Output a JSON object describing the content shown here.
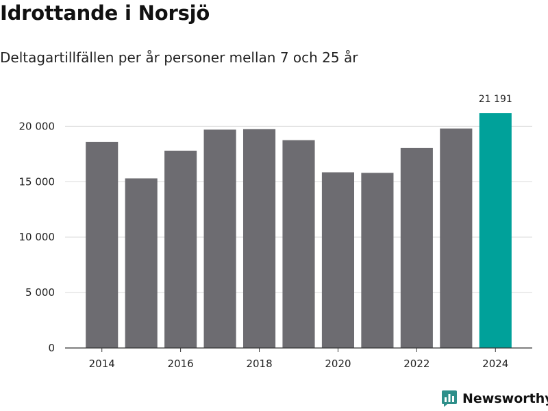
{
  "colors": {
    "bar": "#6d6c71",
    "highlight": "#00a19a",
    "grid": "#d9d9d9",
    "axis": "#333333",
    "brand": "#2e8f8a"
  },
  "chart_data": {
    "type": "bar",
    "title": "Idrottande i Norsjö",
    "subtitle": "Deltagartillfällen per år personer mellan 7 och 25 år",
    "categories": [
      "2014",
      "2015",
      "2016",
      "2017",
      "2018",
      "2019",
      "2020",
      "2021",
      "2022",
      "2023",
      "2024"
    ],
    "values": [
      18600,
      15300,
      17800,
      19700,
      19750,
      18750,
      15850,
      15800,
      18050,
      19800,
      21191
    ],
    "highlight_index": 10,
    "data_labels": [
      {
        "index": 10,
        "text": "21 191"
      }
    ],
    "ylim": [
      0,
      22000
    ],
    "yticks": [
      0,
      5000,
      10000,
      15000,
      20000
    ],
    "ytick_labels": [
      "0",
      "5 000",
      "10 000",
      "15 000",
      "20 000"
    ],
    "xtick_labels": [
      "2014",
      "2016",
      "2018",
      "2020",
      "2022",
      "2024"
    ],
    "xlabel": "",
    "ylabel": "",
    "grid": true,
    "legend": "none"
  },
  "brand": {
    "name": "Newsworthy",
    "logo_icon": "newsworthy-logo-icon"
  }
}
